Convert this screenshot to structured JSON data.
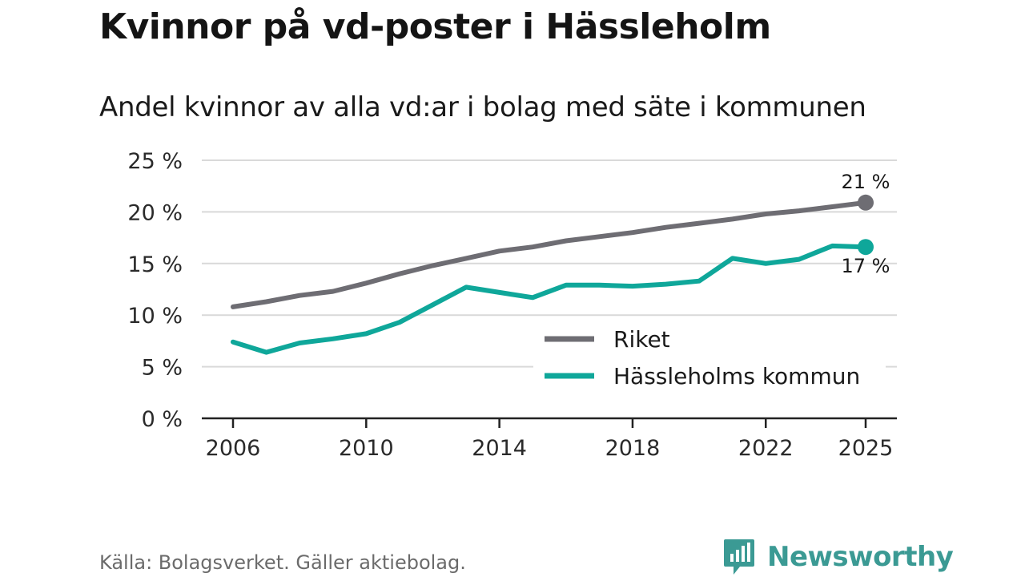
{
  "title": "Kvinnor på vd-poster i Hässleholm",
  "subtitle": "Andel kvinnor av alla vd:ar i bolag med säte i kommunen",
  "source": "Källa: Bolagsverket. Gäller aktiebolag.",
  "brand": "Newsworthy",
  "chart_data": {
    "type": "line",
    "title": "Kvinnor på vd-poster i Hässleholm",
    "subtitle": "Andel kvinnor av alla vd:ar i bolag med säte i kommunen",
    "xlabel": "",
    "ylabel": "",
    "xlim": [
      2006,
      2025
    ],
    "ylim": [
      0,
      25
    ],
    "grid": true,
    "legend_position": "bottom-right",
    "x": [
      2006,
      2007,
      2008,
      2009,
      2010,
      2011,
      2012,
      2013,
      2014,
      2015,
      2016,
      2017,
      2018,
      2019,
      2020,
      2021,
      2022,
      2023,
      2024,
      2025
    ],
    "x_ticks": [
      "2006",
      "2010",
      "2014",
      "2018",
      "2022",
      "2025"
    ],
    "x_tick_values": [
      2006,
      2010,
      2014,
      2018,
      2022,
      2025
    ],
    "y_ticks": [
      "0 %",
      "5 %",
      "10 %",
      "15 %",
      "20 %",
      "25 %"
    ],
    "y_tick_values": [
      0,
      5,
      10,
      15,
      20,
      25
    ],
    "series": [
      {
        "name": "Riket",
        "color": "#6e6d73",
        "values": [
          10.8,
          11.3,
          11.9,
          12.3,
          13.1,
          14.0,
          14.8,
          15.5,
          16.2,
          16.6,
          17.2,
          17.6,
          18.0,
          18.5,
          18.9,
          19.3,
          19.8,
          20.1,
          20.5,
          20.9
        ],
        "end_label": "21 %"
      },
      {
        "name": "Hässleholms kommun",
        "color": "#0fa79a",
        "values": [
          7.4,
          6.4,
          7.3,
          7.7,
          8.2,
          9.3,
          11.0,
          12.7,
          12.2,
          11.7,
          12.9,
          12.9,
          12.8,
          13.0,
          13.3,
          15.5,
          15.0,
          15.4,
          16.7,
          16.6
        ],
        "end_label": "17 %"
      }
    ]
  }
}
